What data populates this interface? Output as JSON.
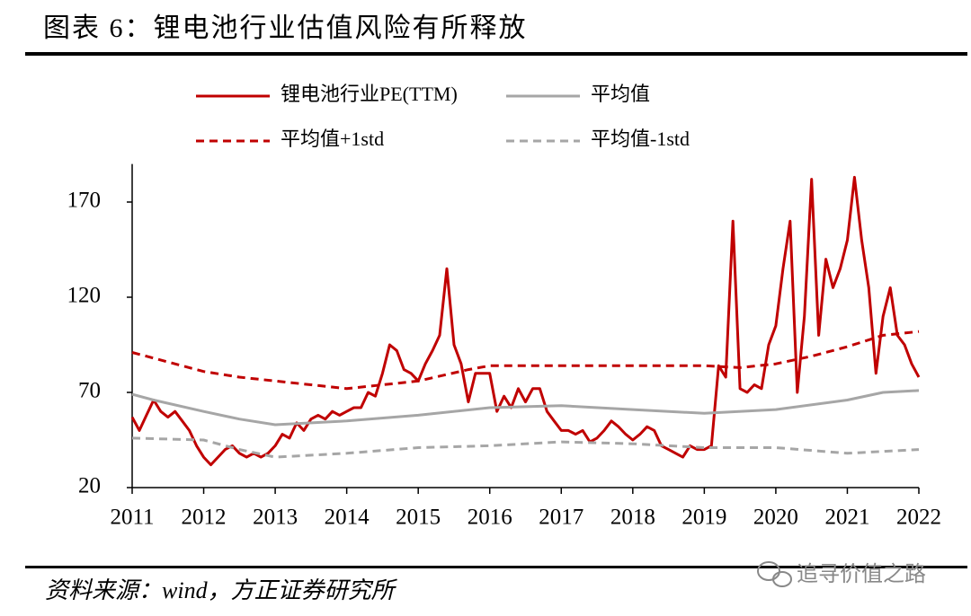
{
  "chart_data": {
    "type": "line",
    "title": "图表 6：锂电池行业估值风险有所释放",
    "source": "资料来源：wind，方正证券研究所",
    "watermark": "追寻价值之路",
    "xlim": [
      2011,
      2022
    ],
    "xticks": [
      2011,
      2012,
      2013,
      2014,
      2015,
      2016,
      2017,
      2018,
      2019,
      2020,
      2021,
      2022
    ],
    "ylim": [
      20,
      190
    ],
    "yticks": [
      20,
      70,
      120,
      170
    ],
    "series": [
      {
        "name": "锂电池行业PE(TTM)",
        "color": "#c00000",
        "dash": false,
        "width": 3,
        "x": [
          2011,
          2011.1,
          2011.2,
          2011.3,
          2011.4,
          2011.5,
          2011.6,
          2011.7,
          2011.8,
          2011.9,
          2012,
          2012.1,
          2012.2,
          2012.3,
          2012.4,
          2012.5,
          2012.6,
          2012.7,
          2012.8,
          2012.9,
          2013,
          2013.1,
          2013.2,
          2013.3,
          2013.4,
          2013.5,
          2013.6,
          2013.7,
          2013.8,
          2013.9,
          2014,
          2014.1,
          2014.2,
          2014.3,
          2014.4,
          2014.5,
          2014.6,
          2014.7,
          2014.8,
          2014.9,
          2015,
          2015.1,
          2015.2,
          2015.3,
          2015.4,
          2015.5,
          2015.6,
          2015.7,
          2015.8,
          2015.9,
          2016,
          2016.1,
          2016.2,
          2016.3,
          2016.4,
          2016.5,
          2016.6,
          2016.7,
          2016.8,
          2016.9,
          2017,
          2017.1,
          2017.2,
          2017.3,
          2017.4,
          2017.5,
          2017.6,
          2017.7,
          2017.8,
          2017.9,
          2018,
          2018.1,
          2018.2,
          2018.3,
          2018.4,
          2018.5,
          2018.6,
          2018.7,
          2018.8,
          2018.9,
          2019,
          2019.1,
          2019.2,
          2019.3,
          2019.4,
          2019.5,
          2019.6,
          2019.7,
          2019.8,
          2019.9,
          2020,
          2020.1,
          2020.2,
          2020.3,
          2020.4,
          2020.5,
          2020.6,
          2020.7,
          2020.8,
          2020.9,
          2021,
          2021.1,
          2021.2,
          2021.3,
          2021.4,
          2021.5,
          2021.6,
          2021.7,
          2021.8,
          2021.9,
          2022
        ],
        "values": [
          57,
          50,
          58,
          66,
          60,
          57,
          60,
          55,
          50,
          42,
          36,
          32,
          36,
          40,
          42,
          38,
          36,
          38,
          36,
          38,
          42,
          48,
          46,
          54,
          50,
          56,
          58,
          56,
          60,
          58,
          60,
          62,
          62,
          70,
          68,
          80,
          95,
          92,
          82,
          80,
          76,
          85,
          92,
          100,
          135,
          95,
          85,
          65,
          80,
          80,
          80,
          60,
          68,
          62,
          72,
          65,
          72,
          72,
          60,
          55,
          50,
          50,
          48,
          50,
          44,
          46,
          50,
          55,
          52,
          48,
          45,
          48,
          52,
          50,
          42,
          40,
          38,
          36,
          42,
          40,
          40,
          42,
          84,
          78,
          160,
          72,
          70,
          74,
          72,
          95,
          105,
          135,
          160,
          70,
          110,
          182,
          100,
          140,
          125,
          135,
          150,
          183,
          150,
          125,
          80,
          110,
          125,
          100,
          95,
          85,
          78
        ]
      },
      {
        "name": "平均值",
        "color": "#a6a6a6",
        "dash": false,
        "width": 3,
        "x": [
          2011,
          2011.3,
          2012,
          2012.5,
          2013,
          2014,
          2015,
          2016,
          2017,
          2018,
          2019,
          2020,
          2021,
          2021.5,
          2022
        ],
        "values": [
          69,
          66,
          60,
          56,
          53,
          55,
          58,
          62,
          63,
          61,
          59,
          61,
          66,
          70,
          71
        ]
      },
      {
        "name": "平均值+1std",
        "color": "#c00000",
        "dash": true,
        "width": 3,
        "x": [
          2011,
          2011.5,
          2012,
          2012.5,
          2013,
          2013.5,
          2014,
          2015,
          2015.7,
          2016,
          2017,
          2018,
          2019,
          2019.5,
          2020,
          2020.5,
          2021,
          2021.5,
          2022
        ],
        "values": [
          91,
          86,
          81,
          78,
          76,
          74,
          72,
          76,
          82,
          84,
          84,
          84,
          84,
          83,
          85,
          89,
          94,
          100,
          102
        ]
      },
      {
        "name": "平均值-1std",
        "color": "#a6a6a6",
        "dash": true,
        "width": 3,
        "x": [
          2011,
          2012,
          2012.5,
          2013,
          2014,
          2015,
          2016,
          2017,
          2018,
          2019,
          2020,
          2021,
          2022
        ],
        "values": [
          46,
          45,
          40,
          36,
          38,
          41,
          42,
          44,
          43,
          41,
          41,
          38,
          40
        ]
      }
    ]
  }
}
